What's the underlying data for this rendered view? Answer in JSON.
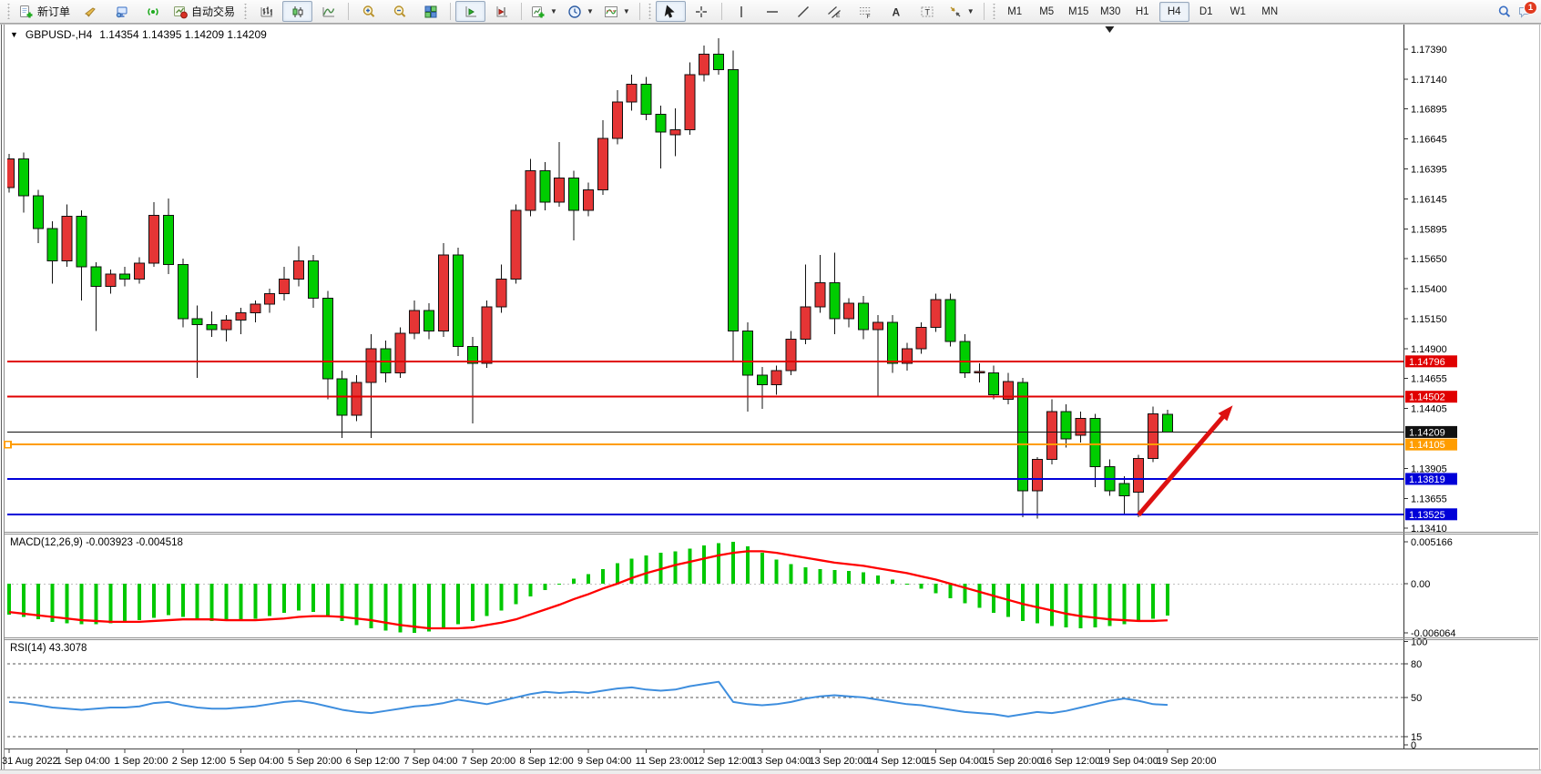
{
  "toolbar": {
    "new_order": "新订单",
    "auto_trading": "自动交易",
    "timeframes": [
      "M1",
      "M5",
      "M15",
      "M30",
      "H1",
      "H4",
      "D1",
      "W1",
      "MN"
    ],
    "active_timeframe": "H4",
    "notification_badge": "1"
  },
  "chart": {
    "symbol_title": "GBPUSD-,H4",
    "ohlc_text": "1.14354 1.14395 1.14209 1.14209",
    "y_ticks": [
      "1.17390",
      "1.17140",
      "1.16895",
      "1.16645",
      "1.16395",
      "1.16145",
      "1.15895",
      "1.15650",
      "1.15400",
      "1.15150",
      "1.14900",
      "1.14655",
      "1.14405",
      "1.13905",
      "1.13655",
      "1.13410"
    ],
    "hlines": [
      {
        "price": 1.14796,
        "label": "1.14796",
        "color": "#e00000",
        "width": 2
      },
      {
        "price": 1.14502,
        "label": "1.14502",
        "color": "#e00000",
        "width": 2
      },
      {
        "price": 1.14209,
        "label": "1.14209",
        "color": "#111111",
        "width": 1
      },
      {
        "price": 1.14105,
        "label": "1.14105",
        "color": "#ff9d00",
        "width": 2,
        "handle": true
      },
      {
        "price": 1.13819,
        "label": "1.13819",
        "color": "#0000d8",
        "width": 2
      },
      {
        "price": 1.13525,
        "label": "1.13525",
        "color": "#0000d8",
        "width": 2
      }
    ],
    "arrow": {
      "from_bar": 78,
      "from_price": 1.1352,
      "to_bar": 84.5,
      "to_price": 1.1443,
      "color": "#dd1111"
    },
    "marker_bar": 76,
    "colors": {
      "up_fill": "#e53535",
      "down_fill": "#00cd00",
      "outline": "#111111",
      "macd_hist": "#00c800",
      "macd_signal": "#ff0000",
      "rsi_line": "#3e8ede"
    }
  },
  "chart_data": {
    "type": "candlestick",
    "symbol": "GBPUSD-",
    "period": "H4",
    "x_labels": [
      "31 Aug 2022",
      "1 Sep 04:00",
      "1 Sep 20:00",
      "2 Sep 12:00",
      "5 Sep 04:00",
      "5 Sep 20:00",
      "6 Sep 12:00",
      "7 Sep 04:00",
      "7 Sep 20:00",
      "8 Sep 12:00",
      "9 Sep 04:00",
      "11 Sep 23:00",
      "12 Sep 12:00",
      "13 Sep 04:00",
      "13 Sep 20:00",
      "14 Sep 12:00",
      "15 Sep 04:00",
      "15 Sep 20:00",
      "16 Sep 12:00",
      "19 Sep 04:00",
      "19 Sep 20:00"
    ],
    "bars_per_label": 4,
    "y_range": [
      1.1341,
      1.1763
    ],
    "candles": [
      [
        1.1624,
        1.1652,
        1.162,
        1.1648
      ],
      [
        1.1648,
        1.1653,
        1.1603,
        1.1617
      ],
      [
        1.1617,
        1.1622,
        1.1578,
        1.159
      ],
      [
        1.159,
        1.1596,
        1.1544,
        1.1563
      ],
      [
        1.1563,
        1.161,
        1.1558,
        1.16
      ],
      [
        1.16,
        1.1605,
        1.153,
        1.1558
      ],
      [
        1.1558,
        1.1562,
        1.1505,
        1.1542
      ],
      [
        1.1542,
        1.1556,
        1.1536,
        1.1552
      ],
      [
        1.1552,
        1.1558,
        1.1542,
        1.1548
      ],
      [
        1.1548,
        1.1566,
        1.1544,
        1.1561
      ],
      [
        1.1561,
        1.1612,
        1.1558,
        1.1601
      ],
      [
        1.1601,
        1.1615,
        1.1552,
        1.156
      ],
      [
        1.156,
        1.1565,
        1.1508,
        1.1515
      ],
      [
        1.1515,
        1.1526,
        1.1466,
        1.151
      ],
      [
        1.151,
        1.1521,
        1.15,
        1.1506
      ],
      [
        1.1506,
        1.1518,
        1.1496,
        1.1514
      ],
      [
        1.1514,
        1.1524,
        1.1502,
        1.152
      ],
      [
        1.152,
        1.153,
        1.1512,
        1.1527
      ],
      [
        1.1527,
        1.154,
        1.152,
        1.1536
      ],
      [
        1.1536,
        1.1558,
        1.153,
        1.1548
      ],
      [
        1.1548,
        1.1575,
        1.1542,
        1.1563
      ],
      [
        1.1563,
        1.1568,
        1.1524,
        1.1532
      ],
      [
        1.1532,
        1.1538,
        1.1448,
        1.1465
      ],
      [
        1.1465,
        1.1472,
        1.1416,
        1.1435
      ],
      [
        1.1435,
        1.1468,
        1.143,
        1.1462
      ],
      [
        1.1462,
        1.1502,
        1.1416,
        1.149
      ],
      [
        1.149,
        1.1497,
        1.1462,
        1.147
      ],
      [
        1.147,
        1.1508,
        1.1466,
        1.1503
      ],
      [
        1.1503,
        1.153,
        1.1498,
        1.1522
      ],
      [
        1.1522,
        1.1528,
        1.1498,
        1.1505
      ],
      [
        1.1505,
        1.1578,
        1.15,
        1.1568
      ],
      [
        1.1568,
        1.1574,
        1.1484,
        1.1492
      ],
      [
        1.1492,
        1.15,
        1.1428,
        1.1478
      ],
      [
        1.1478,
        1.153,
        1.1474,
        1.1525
      ],
      [
        1.1525,
        1.156,
        1.152,
        1.1548
      ],
      [
        1.1548,
        1.161,
        1.1544,
        1.1605
      ],
      [
        1.1605,
        1.1648,
        1.16,
        1.1638
      ],
      [
        1.1638,
        1.1645,
        1.1605,
        1.1612
      ],
      [
        1.1612,
        1.1662,
        1.1608,
        1.1632
      ],
      [
        1.1632,
        1.1638,
        1.158,
        1.1605
      ],
      [
        1.1605,
        1.1628,
        1.16,
        1.1622
      ],
      [
        1.1622,
        1.168,
        1.1618,
        1.1665
      ],
      [
        1.1665,
        1.1705,
        1.166,
        1.1695
      ],
      [
        1.1695,
        1.1718,
        1.1688,
        1.171
      ],
      [
        1.171,
        1.1716,
        1.168,
        1.1685
      ],
      [
        1.1685,
        1.1692,
        1.164,
        1.167
      ],
      [
        1.1668,
        1.169,
        1.165,
        1.1672
      ],
      [
        1.1672,
        1.1728,
        1.1668,
        1.1718
      ],
      [
        1.1718,
        1.1742,
        1.1712,
        1.1735
      ],
      [
        1.1735,
        1.1748,
        1.1718,
        1.1722
      ],
      [
        1.1722,
        1.1738,
        1.148,
        1.1505
      ],
      [
        1.1505,
        1.1512,
        1.1438,
        1.1468
      ],
      [
        1.1468,
        1.1475,
        1.144,
        1.146
      ],
      [
        1.146,
        1.1476,
        1.1452,
        1.1472
      ],
      [
        1.1472,
        1.1505,
        1.1468,
        1.1498
      ],
      [
        1.1498,
        1.156,
        1.1494,
        1.1525
      ],
      [
        1.1525,
        1.1568,
        1.152,
        1.1545
      ],
      [
        1.1545,
        1.157,
        1.1502,
        1.1515
      ],
      [
        1.1515,
        1.1532,
        1.1508,
        1.1528
      ],
      [
        1.1528,
        1.1534,
        1.1498,
        1.1506
      ],
      [
        1.1506,
        1.1518,
        1.145,
        1.1512
      ],
      [
        1.1512,
        1.1518,
        1.147,
        1.1478
      ],
      [
        1.1478,
        1.1495,
        1.1472,
        1.149
      ],
      [
        1.149,
        1.1512,
        1.1486,
        1.1508
      ],
      [
        1.1508,
        1.1536,
        1.1504,
        1.1531
      ],
      [
        1.1531,
        1.1536,
        1.1492,
        1.1496
      ],
      [
        1.1496,
        1.1502,
        1.1466,
        1.147
      ],
      [
        1.147,
        1.1478,
        1.1462,
        1.1471
      ],
      [
        1.147,
        1.1476,
        1.1448,
        1.1452
      ],
      [
        1.1448,
        1.147,
        1.1444,
        1.1463
      ],
      [
        1.1462,
        1.1466,
        1.135,
        1.1372
      ],
      [
        1.1372,
        1.14,
        1.1349,
        1.1398
      ],
      [
        1.1398,
        1.1448,
        1.1394,
        1.1438
      ],
      [
        1.1438,
        1.1444,
        1.1408,
        1.1415
      ],
      [
        1.1418,
        1.1438,
        1.1412,
        1.1432
      ],
      [
        1.1432,
        1.1436,
        1.1375,
        1.1392
      ],
      [
        1.1392,
        1.1398,
        1.1368,
        1.1372
      ],
      [
        1.1378,
        1.1384,
        1.1353,
        1.1368
      ],
      [
        1.1371,
        1.1402,
        1.135,
        1.1399
      ],
      [
        1.1399,
        1.1442,
        1.1396,
        1.1436
      ],
      [
        1.14354,
        1.14395,
        1.14209,
        1.14209
      ]
    ],
    "macd": {
      "label": "MACD(12,26,9)",
      "values_text": "-0.003923 -0.004518",
      "axis_ticks": [
        "0.005166",
        "0.00",
        "-0.006064"
      ],
      "max": 0.005166,
      "min": -0.006064,
      "histogram": [
        -0.0038,
        -0.0041,
        -0.0044,
        -0.0047,
        -0.0049,
        -0.005,
        -0.005,
        -0.0049,
        -0.0047,
        -0.0045,
        -0.0042,
        -0.0039,
        -0.0041,
        -0.0044,
        -0.0046,
        -0.0046,
        -0.0045,
        -0.0043,
        -0.004,
        -0.0036,
        -0.0033,
        -0.0035,
        -0.004,
        -0.0046,
        -0.0051,
        -0.0055,
        -0.0058,
        -0.006,
        -0.006064,
        -0.0059,
        -0.0055,
        -0.005,
        -0.0046,
        -0.004,
        -0.0033,
        -0.0025,
        -0.0016,
        -0.0008,
        -0.0001,
        0.0006,
        0.0012,
        0.0018,
        0.0025,
        0.0031,
        0.0035,
        0.0038,
        0.004,
        0.0043,
        0.0047,
        0.005,
        0.005166,
        0.0046,
        0.0038,
        0.003,
        0.0024,
        0.002,
        0.0018,
        0.0017,
        0.0016,
        0.0014,
        0.001,
        0.0005,
        0.0,
        -0.0006,
        -0.0012,
        -0.0018,
        -0.0024,
        -0.003,
        -0.0036,
        -0.0041,
        -0.0046,
        -0.0049,
        -0.0052,
        -0.0054,
        -0.0055,
        -0.0054,
        -0.0052,
        -0.005,
        -0.0046,
        -0.0043,
        -0.003923
      ],
      "signal": [
        -0.0035,
        -0.0037,
        -0.0039,
        -0.0041,
        -0.0043,
        -0.0045,
        -0.0046,
        -0.0047,
        -0.0047,
        -0.0047,
        -0.0046,
        -0.0045,
        -0.0044,
        -0.0044,
        -0.0044,
        -0.0045,
        -0.0045,
        -0.0045,
        -0.0044,
        -0.0043,
        -0.0041,
        -0.004,
        -0.004,
        -0.0041,
        -0.0043,
        -0.0045,
        -0.0048,
        -0.0051,
        -0.0053,
        -0.0055,
        -0.0055,
        -0.0055,
        -0.0054,
        -0.0051,
        -0.0048,
        -0.0044,
        -0.0038,
        -0.0032,
        -0.0026,
        -0.0019,
        -0.0013,
        -0.0006,
        0.0,
        0.0007,
        0.0013,
        0.0018,
        0.0023,
        0.0027,
        0.0031,
        0.0035,
        0.0038,
        0.004,
        0.004,
        0.0038,
        0.0035,
        0.0032,
        0.0029,
        0.0026,
        0.0024,
        0.0022,
        0.0019,
        0.0016,
        0.0013,
        0.0009,
        0.0005,
        0.0,
        -0.0005,
        -0.001,
        -0.0015,
        -0.002,
        -0.0025,
        -0.0029,
        -0.0033,
        -0.0037,
        -0.004,
        -0.0042,
        -0.0044,
        -0.0045,
        -0.0046,
        -0.0046,
        -0.004518
      ]
    },
    "rsi": {
      "label": "RSI(14)",
      "value_text": "43.3078",
      "levels": [
        80,
        50,
        15
      ],
      "axis_ticks": [
        100,
        80,
        50,
        15,
        0
      ],
      "values": [
        46,
        45,
        43,
        41,
        40,
        39,
        40,
        41,
        41,
        42,
        45,
        46,
        43,
        41,
        40,
        40,
        41,
        42,
        44,
        46,
        47,
        45,
        42,
        39,
        37,
        36,
        38,
        40,
        42,
        43,
        45,
        48,
        46,
        44,
        47,
        50,
        53,
        55,
        54,
        55,
        54,
        56,
        58,
        59,
        57,
        56,
        57,
        60,
        62,
        64,
        46,
        44,
        43,
        44,
        46,
        49,
        51,
        52,
        51,
        50,
        48,
        46,
        44,
        43,
        41,
        39,
        37,
        36,
        35,
        33,
        35,
        37,
        36,
        38,
        41,
        44,
        47,
        49,
        47,
        44,
        43.3
      ]
    }
  }
}
